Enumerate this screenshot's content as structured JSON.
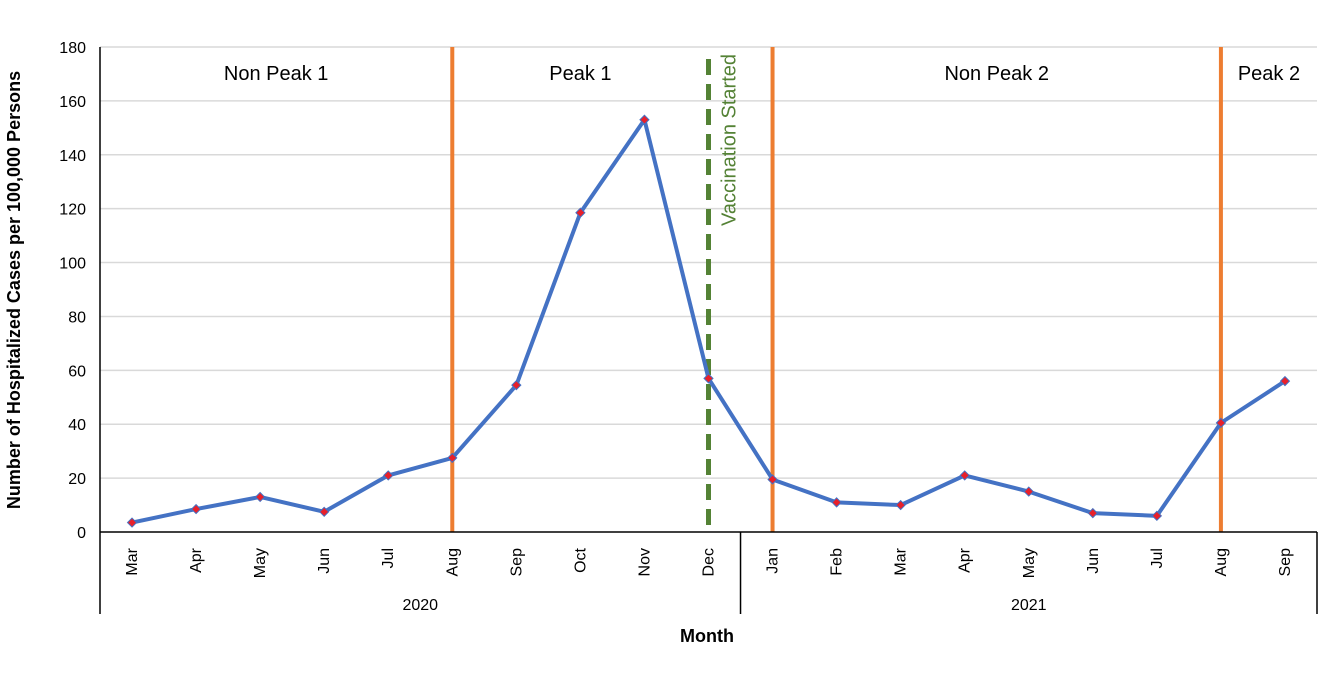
{
  "chart_data": {
    "type": "line",
    "title": "",
    "xlabel": "Month",
    "ylabel": "Number of Hospitalized Cases per 100,000 Persons",
    "ylim": [
      0,
      180
    ],
    "yticks": [
      0,
      20,
      40,
      60,
      80,
      100,
      120,
      140,
      160,
      180
    ],
    "grid": true,
    "categories": [
      "Mar",
      "Apr",
      "May",
      "Jun",
      "Jul",
      "Aug",
      "Sep",
      "Oct",
      "Nov",
      "Dec",
      "Jan",
      "Feb",
      "Mar",
      "Apr",
      "May",
      "Jun",
      "Jul",
      "Aug",
      "Sep"
    ],
    "years": [
      {
        "label": "2020",
        "start": 0,
        "end": 9
      },
      {
        "label": "2021",
        "start": 10,
        "end": 18
      }
    ],
    "series": [
      {
        "values": [
          3.5,
          8.5,
          13,
          7.5,
          21,
          27.5,
          54.5,
          118.5,
          153,
          57,
          19.5,
          11,
          10,
          21,
          15,
          7,
          6,
          40.5,
          56
        ]
      }
    ],
    "period_boundaries": [
      5,
      17
    ],
    "periods": [
      {
        "label": "Non Peak 1"
      },
      {
        "label": "Peak 1"
      },
      {
        "label": "Non Peak 2"
      },
      {
        "label": "Peak 2"
      }
    ],
    "vaccination": {
      "label": "Vaccination Started",
      "index": 9
    },
    "colors": {
      "line": "#4472C4",
      "marker": "#E8202A",
      "boundary": "#ED7D31",
      "vaccination": "#548235",
      "grid": "#D9D9D9"
    }
  }
}
